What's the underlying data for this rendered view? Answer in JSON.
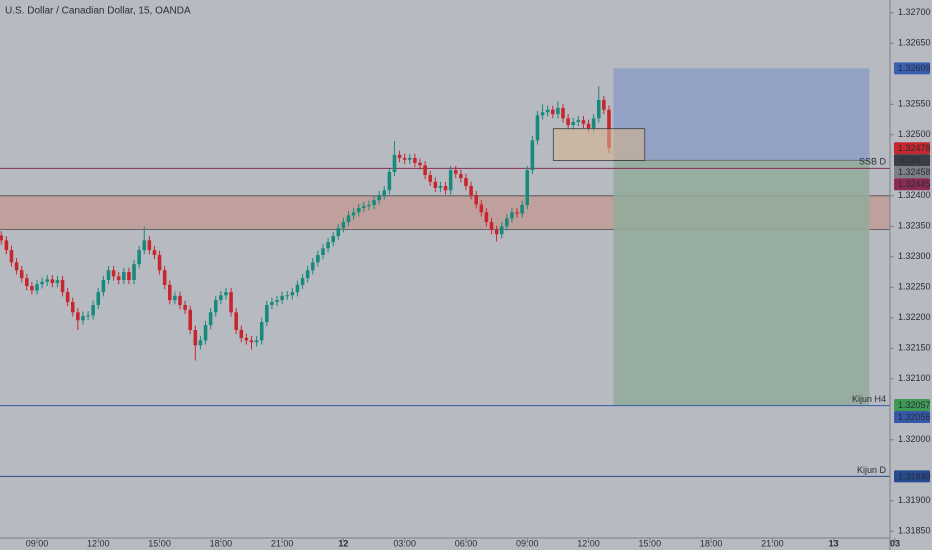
{
  "chart_data": {
    "type": "candlestick",
    "title": "U.S. Dollar / Canadian Dollar, 15, OANDA",
    "up_color": "#178a7b",
    "down_color": "#c8262e",
    "xlim": [
      -0.245,
      174.03
    ],
    "ylim": [
      1.31839,
      1.32721
    ],
    "xticks": [
      {
        "value": 7,
        "label": "09:00"
      },
      {
        "value": 19,
        "label": "12:00"
      },
      {
        "value": 31,
        "label": "15:00"
      },
      {
        "value": 43,
        "label": "18:00"
      },
      {
        "value": 55,
        "label": "21:00"
      },
      {
        "value": 67,
        "label": "12"
      },
      {
        "value": 79,
        "label": "03:00"
      },
      {
        "value": 91,
        "label": "06:00"
      },
      {
        "value": 103,
        "label": "09:00"
      },
      {
        "value": 115,
        "label": "12:00"
      },
      {
        "value": 127,
        "label": "15:00"
      },
      {
        "value": 139,
        "label": "18:00"
      },
      {
        "value": 151,
        "label": "21:00"
      },
      {
        "value": 163,
        "label": "13"
      },
      {
        "value": 175,
        "label": "03"
      }
    ],
    "yticks": [
      {
        "value": 1.327,
        "label": "1.32700"
      },
      {
        "value": 1.3265,
        "label": "1.32650"
      },
      {
        "value": 1.3255,
        "label": "1.32550"
      },
      {
        "value": 1.325,
        "label": "1.32500"
      },
      {
        "value": 1.324,
        "label": "1.32400"
      },
      {
        "value": 1.3235,
        "label": "1.32350"
      },
      {
        "value": 1.323,
        "label": "1.32300"
      },
      {
        "value": 1.3225,
        "label": "1.32250"
      },
      {
        "value": 1.322,
        "label": "1.32200"
      },
      {
        "value": 1.3215,
        "label": "1.32150"
      },
      {
        "value": 1.321,
        "label": "1.32100"
      },
      {
        "value": 1.32,
        "label": "1.32000"
      },
      {
        "value": 1.319,
        "label": "1.31900"
      },
      {
        "value": 1.3185,
        "label": "1.31850"
      }
    ],
    "grid": false,
    "candles": [
      [
        1.32335,
        1.32342,
        1.3232,
        1.32327
      ],
      [
        1.32327,
        1.32334,
        1.32304,
        1.32311
      ],
      [
        1.32311,
        1.32318,
        1.32284,
        1.32291
      ],
      [
        1.32291,
        1.32298,
        1.32271,
        1.32278
      ],
      [
        1.32278,
        1.32285,
        1.32258,
        1.32265
      ],
      [
        1.32265,
        1.32272,
        1.32245,
        1.32252
      ],
      [
        1.32252,
        1.32259,
        1.32238,
        1.32245
      ],
      [
        1.32245,
        1.32262,
        1.32238,
        1.32255
      ],
      [
        1.32255,
        1.32266,
        1.32248,
        1.32259
      ],
      [
        1.32259,
        1.3227,
        1.32252,
        1.32263
      ],
      [
        1.32263,
        1.3227,
        1.3225,
        1.32257
      ],
      [
        1.32257,
        1.32269,
        1.3225,
        1.32262
      ],
      [
        1.32262,
        1.32269,
        1.32235,
        1.32242
      ],
      [
        1.32242,
        1.32249,
        1.32219,
        1.32226
      ],
      [
        1.32226,
        1.32233,
        1.32202,
        1.32209
      ],
      [
        1.32209,
        1.32216,
        1.3218,
        1.32196
      ],
      [
        1.32196,
        1.3221,
        1.32189,
        1.32203
      ],
      [
        1.32203,
        1.32211,
        1.32196,
        1.32204
      ],
      [
        1.32204,
        1.32228,
        1.32197,
        1.32221
      ],
      [
        1.32221,
        1.32249,
        1.32214,
        1.32242
      ],
      [
        1.32242,
        1.32269,
        1.32235,
        1.32262
      ],
      [
        1.32262,
        1.32285,
        1.32255,
        1.32278
      ],
      [
        1.32278,
        1.32285,
        1.32261,
        1.32268
      ],
      [
        1.32268,
        1.32275,
        1.32255,
        1.32262
      ],
      [
        1.32262,
        1.32282,
        1.32255,
        1.32275
      ],
      [
        1.32275,
        1.32282,
        1.32255,
        1.32262
      ],
      [
        1.32262,
        1.32295,
        1.32255,
        1.32288
      ],
      [
        1.32288,
        1.32318,
        1.32281,
        1.32311
      ],
      [
        1.32311,
        1.3235,
        1.32304,
        1.32327
      ],
      [
        1.32327,
        1.32334,
        1.32304,
        1.32311
      ],
      [
        1.32311,
        1.32318,
        1.32296,
        1.32303
      ],
      [
        1.32303,
        1.3231,
        1.32271,
        1.32278
      ],
      [
        1.32278,
        1.32285,
        1.32247,
        1.32254
      ],
      [
        1.32254,
        1.32261,
        1.32222,
        1.32229
      ],
      [
        1.32229,
        1.32243,
        1.32222,
        1.32236
      ],
      [
        1.32236,
        1.32243,
        1.32214,
        1.32221
      ],
      [
        1.32221,
        1.32228,
        1.32206,
        1.32213
      ],
      [
        1.32213,
        1.3222,
        1.32173,
        1.3218
      ],
      [
        1.3218,
        1.32187,
        1.3213,
        1.32155
      ],
      [
        1.32155,
        1.3217,
        1.32148,
        1.32163
      ],
      [
        1.32163,
        1.32195,
        1.32156,
        1.32188
      ],
      [
        1.32188,
        1.32216,
        1.32181,
        1.32209
      ],
      [
        1.32209,
        1.32236,
        1.32202,
        1.32229
      ],
      [
        1.32229,
        1.32244,
        1.32222,
        1.32237
      ],
      [
        1.32237,
        1.32249,
        1.3223,
        1.32242
      ],
      [
        1.32242,
        1.32249,
        1.32202,
        1.32209
      ],
      [
        1.32209,
        1.32216,
        1.32173,
        1.3218
      ],
      [
        1.3218,
        1.32187,
        1.3216,
        1.32167
      ],
      [
        1.32167,
        1.32174,
        1.32156,
        1.32163
      ],
      [
        1.32163,
        1.3217,
        1.32148,
        1.3216
      ],
      [
        1.3216,
        1.3217,
        1.32153,
        1.32163
      ],
      [
        1.32163,
        1.322,
        1.32156,
        1.32193
      ],
      [
        1.32193,
        1.32228,
        1.32186,
        1.32221
      ],
      [
        1.32221,
        1.32233,
        1.32214,
        1.32226
      ],
      [
        1.32226,
        1.32236,
        1.32219,
        1.32229
      ],
      [
        1.32229,
        1.32243,
        1.32222,
        1.32236
      ],
      [
        1.32236,
        1.32244,
        1.32229,
        1.32237
      ],
      [
        1.32237,
        1.32249,
        1.3223,
        1.32242
      ],
      [
        1.32242,
        1.32261,
        1.32235,
        1.32254
      ],
      [
        1.32254,
        1.32272,
        1.32247,
        1.32265
      ],
      [
        1.32265,
        1.32285,
        1.32258,
        1.32278
      ],
      [
        1.32278,
        1.32298,
        1.32271,
        1.32291
      ],
      [
        1.32291,
        1.3231,
        1.32284,
        1.32303
      ],
      [
        1.32303,
        1.32321,
        1.32296,
        1.32314
      ],
      [
        1.32314,
        1.32331,
        1.32307,
        1.32324
      ],
      [
        1.32324,
        1.32341,
        1.32317,
        1.32334
      ],
      [
        1.32334,
        1.32354,
        1.32327,
        1.32347
      ],
      [
        1.32347,
        1.32364,
        1.3234,
        1.32357
      ],
      [
        1.32357,
        1.32375,
        1.3235,
        1.32368
      ],
      [
        1.32368,
        1.3238,
        1.32361,
        1.32373
      ],
      [
        1.32373,
        1.32387,
        1.32366,
        1.3238
      ],
      [
        1.3238,
        1.3239,
        1.32373,
        1.32383
      ],
      [
        1.32383,
        1.32392,
        1.32376,
        1.32385
      ],
      [
        1.32385,
        1.324,
        1.32378,
        1.32393
      ],
      [
        1.32393,
        1.32408,
        1.32386,
        1.32401
      ],
      [
        1.32401,
        1.32416,
        1.32394,
        1.32409
      ],
      [
        1.32409,
        1.32446,
        1.32402,
        1.32439
      ],
      [
        1.32439,
        1.3249,
        1.32432,
        1.32467
      ],
      [
        1.32467,
        1.32474,
        1.32455,
        1.32462
      ],
      [
        1.32462,
        1.32469,
        1.32452,
        1.32459
      ],
      [
        1.32459,
        1.32469,
        1.32452,
        1.32462
      ],
      [
        1.32462,
        1.32469,
        1.32447,
        1.32454
      ],
      [
        1.32454,
        1.32461,
        1.32443,
        1.3245
      ],
      [
        1.3245,
        1.32457,
        1.32427,
        1.32434
      ],
      [
        1.32434,
        1.32441,
        1.32416,
        1.32423
      ],
      [
        1.32423,
        1.3243,
        1.32406,
        1.32413
      ],
      [
        1.32413,
        1.32423,
        1.32406,
        1.32416
      ],
      [
        1.32416,
        1.32423,
        1.32402,
        1.32409
      ],
      [
        1.32409,
        1.32449,
        1.32402,
        1.32442
      ],
      [
        1.32442,
        1.32449,
        1.32429,
        1.32436
      ],
      [
        1.32436,
        1.32443,
        1.32422,
        1.32429
      ],
      [
        1.32429,
        1.32436,
        1.32409,
        1.32416
      ],
      [
        1.32416,
        1.32423,
        1.32394,
        1.32401
      ],
      [
        1.32401,
        1.32408,
        1.32379,
        1.32386
      ],
      [
        1.32386,
        1.32393,
        1.32366,
        1.32373
      ],
      [
        1.32373,
        1.3238,
        1.3235,
        1.32357
      ],
      [
        1.32357,
        1.32364,
        1.32337,
        1.32344
      ],
      [
        1.32344,
        1.32351,
        1.32325,
        1.32337
      ],
      [
        1.32337,
        1.32357,
        1.3233,
        1.3235
      ],
      [
        1.3235,
        1.3237,
        1.32343,
        1.32363
      ],
      [
        1.32363,
        1.3238,
        1.32356,
        1.32373
      ],
      [
        1.32373,
        1.3238,
        1.32364,
        1.32371
      ],
      [
        1.32371,
        1.32392,
        1.32364,
        1.32385
      ],
      [
        1.32385,
        1.32449,
        1.32378,
        1.32442
      ],
      [
        1.32442,
        1.32498,
        1.32435,
        1.32491
      ],
      [
        1.32491,
        1.32539,
        1.32484,
        1.32532
      ],
      [
        1.32532,
        1.3255,
        1.32525,
        1.32537
      ],
      [
        1.32537,
        1.32548,
        1.3253,
        1.32541
      ],
      [
        1.32541,
        1.32548,
        1.32527,
        1.32534
      ],
      [
        1.32534,
        1.32555,
        1.32527,
        1.32544
      ],
      [
        1.32544,
        1.32551,
        1.3252,
        1.32527
      ],
      [
        1.32527,
        1.32534,
        1.32509,
        1.32516
      ],
      [
        1.32516,
        1.32528,
        1.32509,
        1.32521
      ],
      [
        1.32521,
        1.32531,
        1.32514,
        1.32524
      ],
      [
        1.32524,
        1.32531,
        1.32511,
        1.32518
      ],
      [
        1.32518,
        1.32525,
        1.32504,
        1.32511
      ],
      [
        1.32511,
        1.32534,
        1.32504,
        1.32527
      ],
      [
        1.32527,
        1.3258,
        1.3252,
        1.32557
      ],
      [
        1.32557,
        1.32564,
        1.32534,
        1.32541
      ],
      [
        1.32541,
        1.32548,
        1.3247,
        1.32478
      ]
    ],
    "levels": [
      {
        "name": "SSB D",
        "value": 1.32445,
        "color": "#8b2a55"
      },
      {
        "name": "Kijun H4",
        "value": 1.32056,
        "color": "#3559a8"
      },
      {
        "name": "Kijun D",
        "value": 1.3194,
        "value_label": "1.31940",
        "color": "#264a8f"
      }
    ],
    "zone": {
      "from": 1.324,
      "to": 1.32345,
      "color": "#c98a80"
    },
    "box": {
      "x": [
        108.1,
        126
      ],
      "top": 1.3251,
      "bottom": 1.32458,
      "color": "#d9b48c"
    },
    "position": {
      "x": [
        119.9,
        170
      ],
      "top": 1.32609,
      "entry": 1.32458,
      "bottom": 1.32057,
      "top_color": "#8fa0c4",
      "bottom_color": "#93ac9b",
      "top_tag_color": "#3a5fb0",
      "entry_tag_color": "#7d8088",
      "bottom_tag_color": "#3f9a55"
    },
    "last_price": 1.32478,
    "countdown": "00:26"
  }
}
